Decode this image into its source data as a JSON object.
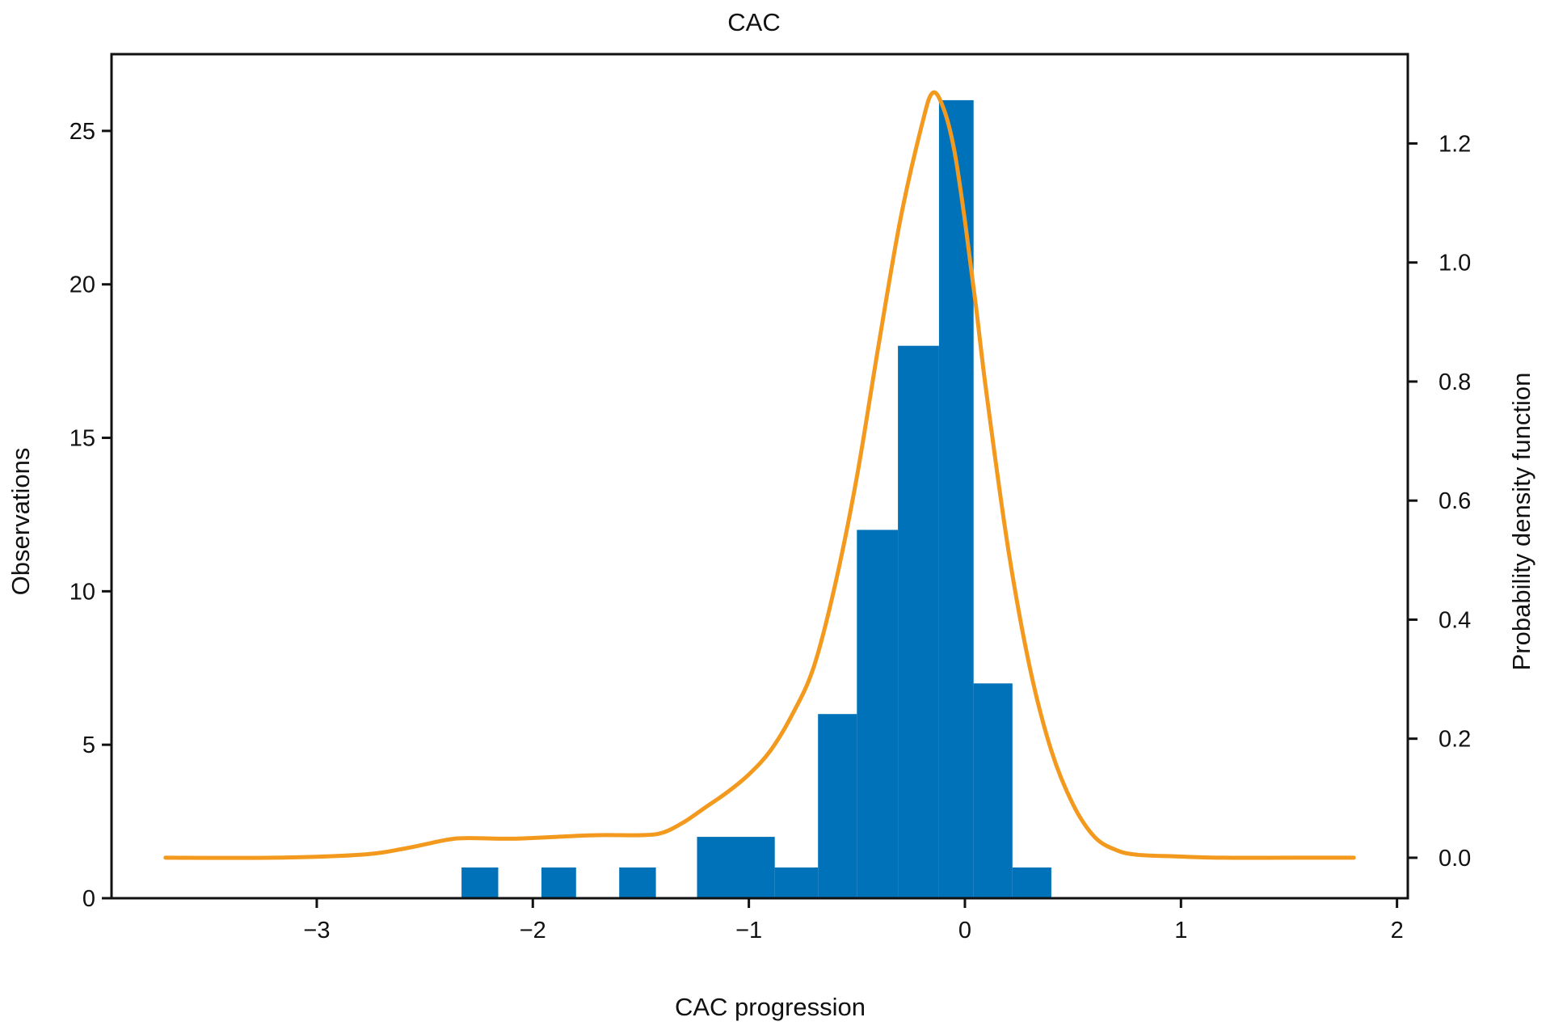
{
  "chart_data": {
    "type": "bar",
    "title": "CAC",
    "xlabel": "CAC progression",
    "ylabel": "Observations",
    "y2label": "Probability density function",
    "xlim": [
      -3.95,
      2.05
    ],
    "ylim": [
      0,
      27.5
    ],
    "y2lim": [
      -0.068,
      1.35
    ],
    "xticks": [
      -3,
      -2,
      -1,
      0,
      1,
      2
    ],
    "xtick_labels": [
      "−3",
      "−2",
      "−1",
      "0",
      "1",
      "2"
    ],
    "yticks": [
      0,
      5,
      10,
      15,
      20,
      25
    ],
    "y2ticks": [
      0.0,
      0.2,
      0.4,
      0.6,
      0.8,
      1.0,
      1.2
    ],
    "y2tick_labels": [
      "0.0",
      "0.2",
      "0.4",
      "0.6",
      "0.8",
      "1.0",
      "1.2"
    ],
    "bar_color": "#0072b9",
    "curve_color": "#f39a1e",
    "bars": [
      {
        "x0": -2.33,
        "x1": -2.16,
        "count": 1
      },
      {
        "x0": -1.96,
        "x1": -1.8,
        "count": 1
      },
      {
        "x0": -1.6,
        "x1": -1.43,
        "count": 1
      },
      {
        "x0": -1.24,
        "x1": -0.88,
        "count": 2
      },
      {
        "x0": -0.88,
        "x1": -0.68,
        "count": 1
      },
      {
        "x0": -0.68,
        "x1": -0.5,
        "count": 6
      },
      {
        "x0": -0.5,
        "x1": -0.31,
        "count": 12
      },
      {
        "x0": -0.31,
        "x1": -0.12,
        "count": 18
      },
      {
        "x0": -0.12,
        "x1": 0.04,
        "count": 26
      },
      {
        "x0": 0.04,
        "x1": 0.22,
        "count": 7
      },
      {
        "x0": 0.22,
        "x1": 0.4,
        "count": 1
      }
    ],
    "density": {
      "x": [
        -3.7,
        -3.2,
        -2.8,
        -2.6,
        -2.4,
        -2.3,
        -2.1,
        -1.9,
        -1.7,
        -1.5,
        -1.4,
        -1.3,
        -1.2,
        -1.1,
        -1.0,
        -0.9,
        -0.8,
        -0.7,
        -0.6,
        -0.5,
        -0.4,
        -0.3,
        -0.2,
        -0.15,
        -0.1,
        -0.05,
        0.0,
        0.05,
        0.1,
        0.2,
        0.3,
        0.4,
        0.5,
        0.6,
        0.7,
        0.8,
        1.0,
        1.2,
        1.5,
        1.8
      ],
      "y": [
        0.0,
        0.0,
        0.005,
        0.015,
        0.03,
        0.033,
        0.032,
        0.035,
        0.038,
        0.038,
        0.042,
        0.06,
        0.085,
        0.11,
        0.14,
        0.18,
        0.24,
        0.32,
        0.46,
        0.64,
        0.86,
        1.07,
        1.23,
        1.285,
        1.26,
        1.19,
        1.07,
        0.93,
        0.78,
        0.52,
        0.32,
        0.18,
        0.09,
        0.035,
        0.013,
        0.005,
        0.002,
        0.0,
        0.0,
        0.0
      ]
    }
  }
}
